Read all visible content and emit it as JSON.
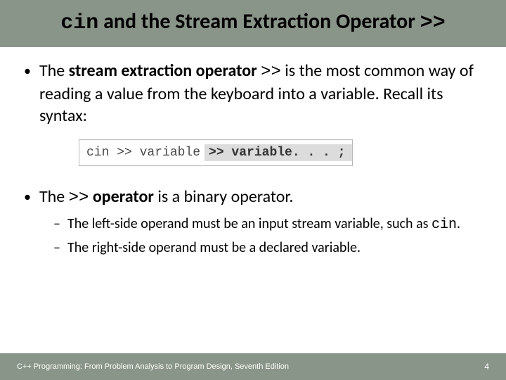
{
  "colors": {
    "header_bg": "#8a9589",
    "footer_bg": "#8a9589",
    "text": "#000000",
    "footer_text": "#ffffff",
    "syntax_border": "#b8b8b8",
    "syntax_gray_bg": "#dcdcdc",
    "syntax_text": "#4a4a4a"
  },
  "title": {
    "part1_code": "cin",
    "part2": " and the Stream Extraction Operator ",
    "part3_code": ">>"
  },
  "bullet1": {
    "pre": "The ",
    "bold": "stream extraction operator ",
    "code": ">>",
    "post": " is the most common way of reading a value from the keyboard into a variable.  Recall its syntax:"
  },
  "syntax": {
    "left": "cin >> variable",
    "right": ">> variable. . . ;"
  },
  "bullet2": {
    "pre": "The ",
    "code": ">>",
    "mid": " ",
    "bold": "operator",
    "post": " is a binary operator."
  },
  "sub1": {
    "pre": "The left-side operand must be an input stream variable, such as ",
    "code": "cin",
    "post": "."
  },
  "sub2": {
    "text": "The right-side operand must be a declared variable."
  },
  "footer": {
    "text": "C++ Programming: From Problem Analysis to Program Design, Seventh Edition",
    "page": "4"
  }
}
